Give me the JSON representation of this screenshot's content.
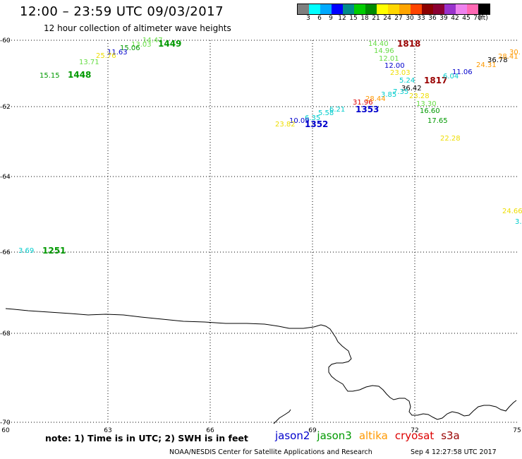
{
  "title": "12:00 – 23:59 UTC 09/03/2017",
  "subtitle": "12 hour collection of altimeter wave heights",
  "legend": {
    "colors": [
      "#7f7f7f",
      "#00ffff",
      "#00aaff",
      "#0000ff",
      "#008b8b",
      "#00cd00",
      "#008b00",
      "#ffff00",
      "#ffd700",
      "#ffa500",
      "#ff4500",
      "#8b0000",
      "#8b0033",
      "#9932cc",
      "#ee82ee",
      "#ff69b4",
      "#000000"
    ],
    "labels": [
      "3",
      "6",
      "9",
      "12",
      "15",
      "18",
      "21",
      "24",
      "27",
      "30",
      "33",
      "36",
      "39",
      "42",
      "45",
      "70",
      "(ft)"
    ]
  },
  "axes": {
    "lat_labels": [
      "-60",
      "-62",
      "-64",
      "-66",
      "-68",
      "-70"
    ],
    "lon_labels": [
      "60",
      "63",
      "66",
      "69",
      "72",
      "75"
    ]
  },
  "colors": {
    "blue": "#0000cc",
    "green": "#009900",
    "light_green": "#66dd44",
    "orange": "#ff9900",
    "yellow": "#eedd00",
    "cyan": "#00cccc",
    "dark_red": "#990000",
    "red": "#dd0000",
    "black": "#000000"
  },
  "observations": [
    {
      "text": "14.47",
      "color": "light_green"
    },
    {
      "text": "13.03",
      "color": "light_green"
    },
    {
      "text": "1449",
      "color": "green",
      "pass": true
    },
    {
      "text": "15.06",
      "color": "green"
    },
    {
      "text": "11.63",
      "color": "blue"
    },
    {
      "text": "25.76",
      "color": "yellow"
    },
    {
      "text": "13.71",
      "color": "light_green"
    },
    {
      "text": "15.15",
      "color": "green"
    },
    {
      "text": "1448",
      "color": "green",
      "pass": true
    },
    {
      "text": "14.40",
      "color": "light_green"
    },
    {
      "text": "1818",
      "color": "dark_red",
      "pass": true
    },
    {
      "text": "14.96",
      "color": "light_green"
    },
    {
      "text": "12.01",
      "color": "light_green"
    },
    {
      "text": "12.00",
      "color": "blue"
    },
    {
      "text": "23.03",
      "color": "yellow"
    },
    {
      "text": "5.24",
      "color": "cyan"
    },
    {
      "text": "36.42",
      "color": "black"
    },
    {
      "text": "1817",
      "color": "dark_red",
      "pass": true
    },
    {
      "text": "7.35",
      "color": "cyan"
    },
    {
      "text": "3.85",
      "color": "cyan"
    },
    {
      "text": "23.28",
      "color": "yellow"
    },
    {
      "text": "28.44",
      "color": "orange"
    },
    {
      "text": "31.96",
      "color": "red"
    },
    {
      "text": "13.30",
      "color": "light_green"
    },
    {
      "text": "6.21",
      "color": "cyan"
    },
    {
      "text": "1353",
      "color": "blue",
      "pass": true
    },
    {
      "text": "16.60",
      "color": "green"
    },
    {
      "text": "5.58",
      "color": "cyan"
    },
    {
      "text": "6.35",
      "color": "cyan"
    },
    {
      "text": "10.09",
      "color": "blue"
    },
    {
      "text": "1352",
      "color": "blue",
      "pass": true
    },
    {
      "text": "23.82",
      "color": "yellow"
    },
    {
      "text": "17.65",
      "color": "green"
    },
    {
      "text": "22.28",
      "color": "yellow"
    },
    {
      "text": "6.04",
      "color": "cyan"
    },
    {
      "text": "11.06",
      "color": "blue"
    },
    {
      "text": "24.31",
      "color": "orange"
    },
    {
      "text": "36.78",
      "color": "black"
    },
    {
      "text": "28.41",
      "color": "orange"
    },
    {
      "text": "30.",
      "color": "orange"
    },
    {
      "text": "24.66",
      "color": "yellow"
    },
    {
      "text": "3.",
      "color": "cyan"
    },
    {
      "text": "3.69",
      "color": "cyan"
    },
    {
      "text": "1251",
      "color": "green",
      "pass": true
    }
  ],
  "note": "note: 1) Time is in UTC; 2) SWH is in feet",
  "satellites": [
    {
      "name": "jason2",
      "color": "#0000cc"
    },
    {
      "name": "jason3",
      "color": "#009900"
    },
    {
      "name": "altika",
      "color": "#ff9900"
    },
    {
      "name": "cryosat",
      "color": "#dd0000"
    },
    {
      "name": "s3a",
      "color": "#990000"
    }
  ],
  "footer": {
    "credit": "NOAA/NESDIS Center for Satellite Applications and Research",
    "timestamp": "Sep  4 12:27:58 UTC 2017"
  }
}
